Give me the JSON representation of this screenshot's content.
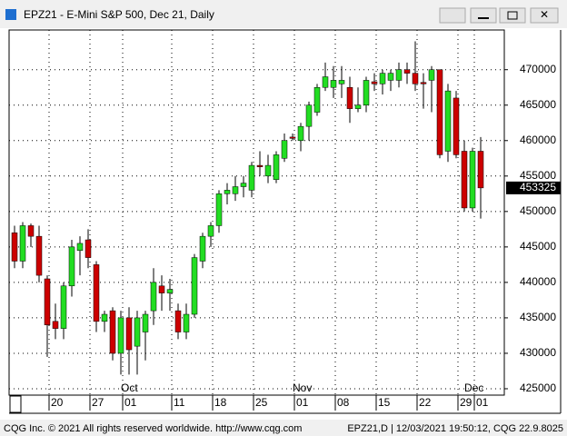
{
  "window_title": "EPZ21 - E-Mini S&P 500, Dec 21, Daily",
  "footer_left": "CQG Inc. © 2021 All rights reserved worldwide. http://www.cqg.com",
  "footer_right": "EPZ21,D | 12/03/2021 19:50:12, CQG 22.9.8025",
  "chart_data": {
    "type": "candlestick",
    "categories": [
      null,
      null,
      null,
      null,
      null,
      "20",
      null,
      null,
      null,
      null,
      "27",
      null,
      null,
      null,
      "01",
      null,
      null,
      null,
      null,
      null,
      "11",
      null,
      null,
      null,
      null,
      "18",
      null,
      null,
      null,
      null,
      "25",
      null,
      null,
      null,
      null,
      "01",
      null,
      null,
      null,
      null,
      "08",
      null,
      null,
      null,
      null,
      "15",
      null,
      null,
      null,
      null,
      "22",
      null,
      null,
      null,
      null,
      "29",
      null,
      "01",
      null
    ],
    "months": [
      null,
      null,
      null,
      null,
      null,
      null,
      null,
      null,
      null,
      null,
      null,
      null,
      null,
      null,
      "Oct",
      null,
      null,
      null,
      null,
      null,
      null,
      null,
      null,
      null,
      null,
      null,
      null,
      null,
      null,
      null,
      null,
      null,
      null,
      null,
      null,
      "Nov",
      null,
      null,
      null,
      null,
      null,
      null,
      null,
      null,
      null,
      null,
      null,
      null,
      null,
      null,
      null,
      null,
      null,
      null,
      null,
      null,
      "Dec",
      null
    ],
    "open": [
      447000,
      443000,
      448000,
      446500,
      440500,
      434500,
      433500,
      439500,
      444500,
      446000,
      442500,
      434500,
      436000,
      430000,
      435000,
      431000,
      433000,
      436000,
      439500,
      438500,
      436000,
      433000,
      435500,
      443000,
      446500,
      448000,
      452500,
      452500,
      453500,
      453000,
      456500,
      455000,
      454500,
      457500,
      460500,
      460000,
      462000,
      464000,
      467500,
      467500,
      468000,
      467500,
      464500,
      465000,
      468300,
      468000,
      468500,
      468500,
      470000,
      469500,
      468200,
      468500,
      470000,
      458500,
      466000,
      458500,
      450500,
      458500
    ],
    "high": [
      448000,
      448500,
      448300,
      448000,
      441000,
      437000,
      440000,
      446000,
      446500,
      447500,
      443000,
      436000,
      436500,
      436000,
      436500,
      436000,
      436000,
      442000,
      441000,
      440500,
      437000,
      437000,
      444000,
      447000,
      448500,
      453000,
      454000,
      455000,
      455000,
      457000,
      458500,
      458000,
      458500,
      461000,
      461000,
      462500,
      465500,
      468000,
      471000,
      470500,
      470500,
      469000,
      467500,
      469000,
      469500,
      470000,
      470000,
      471000,
      471000,
      474000,
      469500,
      470500,
      470000,
      468000,
      467000,
      460000,
      459000,
      460500
    ],
    "low": [
      442000,
      442000,
      445000,
      440000,
      429500,
      432000,
      432000,
      438000,
      441000,
      442000,
      433000,
      433000,
      429000,
      427000,
      427000,
      427000,
      429000,
      434000,
      436000,
      436000,
      432000,
      432000,
      435000,
      442000,
      445000,
      447000,
      451000,
      451500,
      452000,
      452000,
      455000,
      454000,
      454000,
      457000,
      460000,
      458500,
      460000,
      463500,
      467000,
      466000,
      466000,
      462500,
      464000,
      464000,
      467000,
      466500,
      467000,
      467500,
      468000,
      467000,
      464500,
      464000,
      457500,
      457000,
      457500,
      450000,
      450000,
      449000
    ],
    "close": [
      443000,
      448000,
      446500,
      441000,
      434000,
      433500,
      439500,
      445000,
      445500,
      443500,
      434500,
      435500,
      430000,
      435000,
      430500,
      435000,
      435500,
      440000,
      438500,
      439000,
      433000,
      435500,
      443500,
      446500,
      448000,
      452500,
      453000,
      453500,
      454000,
      456500,
      456300,
      456500,
      458000,
      460000,
      460500,
      462000,
      465000,
      467500,
      469000,
      468500,
      468500,
      464500,
      465000,
      468500,
      468000,
      469500,
      469500,
      470000,
      469500,
      468000,
      468000,
      470000,
      458000,
      467000,
      458000,
      450500,
      458500,
      453325
    ],
    "up_color": "#22dd22",
    "down_color": "#cc0000",
    "ylim": [
      424100,
      475600
    ],
    "yticks": [
      425000,
      430000,
      435000,
      440000,
      445000,
      450000,
      455000,
      460000,
      465000,
      470000
    ],
    "grid": true
  }
}
